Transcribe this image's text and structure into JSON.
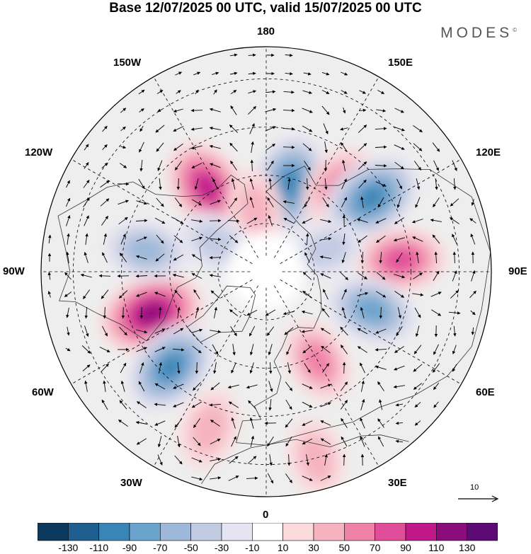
{
  "title": "Base 12/07/2025 00 UTC, valid 15/07/2025 00 UTC",
  "logo": "MODES",
  "logo_mark": "©",
  "longitude_labels": {
    "top": "180",
    "bottom": "0",
    "left": "90W",
    "right": "90E",
    "upper_left_1": "150W",
    "upper_left_2": "120W",
    "upper_right_1": "150E",
    "upper_right_2": "120E",
    "lower_left_1": "60W",
    "lower_left_2": "30W",
    "lower_right_1": "60E",
    "lower_right_2": "30E"
  },
  "reference_vector": {
    "label": "10",
    "value": 10
  },
  "colorbar": {
    "ticks": [
      "-130",
      "-110",
      "-90",
      "-70",
      "-50",
      "-30",
      "-10",
      "10",
      "30",
      "50",
      "70",
      "90",
      "110",
      "130"
    ],
    "colors": [
      "#0d3a5c",
      "#1f5f8f",
      "#3a85b8",
      "#6aa3cc",
      "#9db8d8",
      "#c3cbe2",
      "#e5e4f1",
      "#ffffff",
      "#fadadc",
      "#f5b3c0",
      "#f081a8",
      "#e04e9b",
      "#c0198a",
      "#8b0c7d",
      "#5c0a74"
    ]
  },
  "anomaly_centers": [
    {
      "lon": 165,
      "lat": 62,
      "value": -100,
      "type": "cyclonic"
    },
    {
      "lon": -145,
      "lat": 58,
      "value": 90,
      "type": "anticyclonic"
    },
    {
      "lon": 140,
      "lat": 55,
      "value": 50,
      "type": "anticyclonic"
    },
    {
      "lon": 125,
      "lat": 50,
      "value": -100,
      "type": "cyclonic"
    },
    {
      "lon": 95,
      "lat": 48,
      "value": 70,
      "type": "anticyclonic"
    },
    {
      "lon": 70,
      "lat": 55,
      "value": -70,
      "type": "cyclonic"
    },
    {
      "lon": 30,
      "lat": 58,
      "value": 50,
      "type": "anticyclonic"
    },
    {
      "lon": -70,
      "lat": 52,
      "value": 110,
      "type": "anticyclonic"
    },
    {
      "lon": -45,
      "lat": 48,
      "value": -90,
      "type": "cyclonic"
    },
    {
      "lon": -20,
      "lat": 38,
      "value": 40,
      "type": "anticyclonic"
    },
    {
      "lon": -100,
      "lat": 52,
      "value": -50,
      "type": "cyclonic"
    },
    {
      "lon": 15,
      "lat": 30,
      "value": 30,
      "type": "anticyclonic"
    },
    {
      "lon": -170,
      "lat": 70,
      "value": 30,
      "type": "anticyclonic"
    },
    {
      "lon": 110,
      "lat": 70,
      "value": -30,
      "type": "cyclonic"
    },
    {
      "lon": -120,
      "lat": 72,
      "value": -30,
      "type": "cyclonic"
    }
  ]
}
